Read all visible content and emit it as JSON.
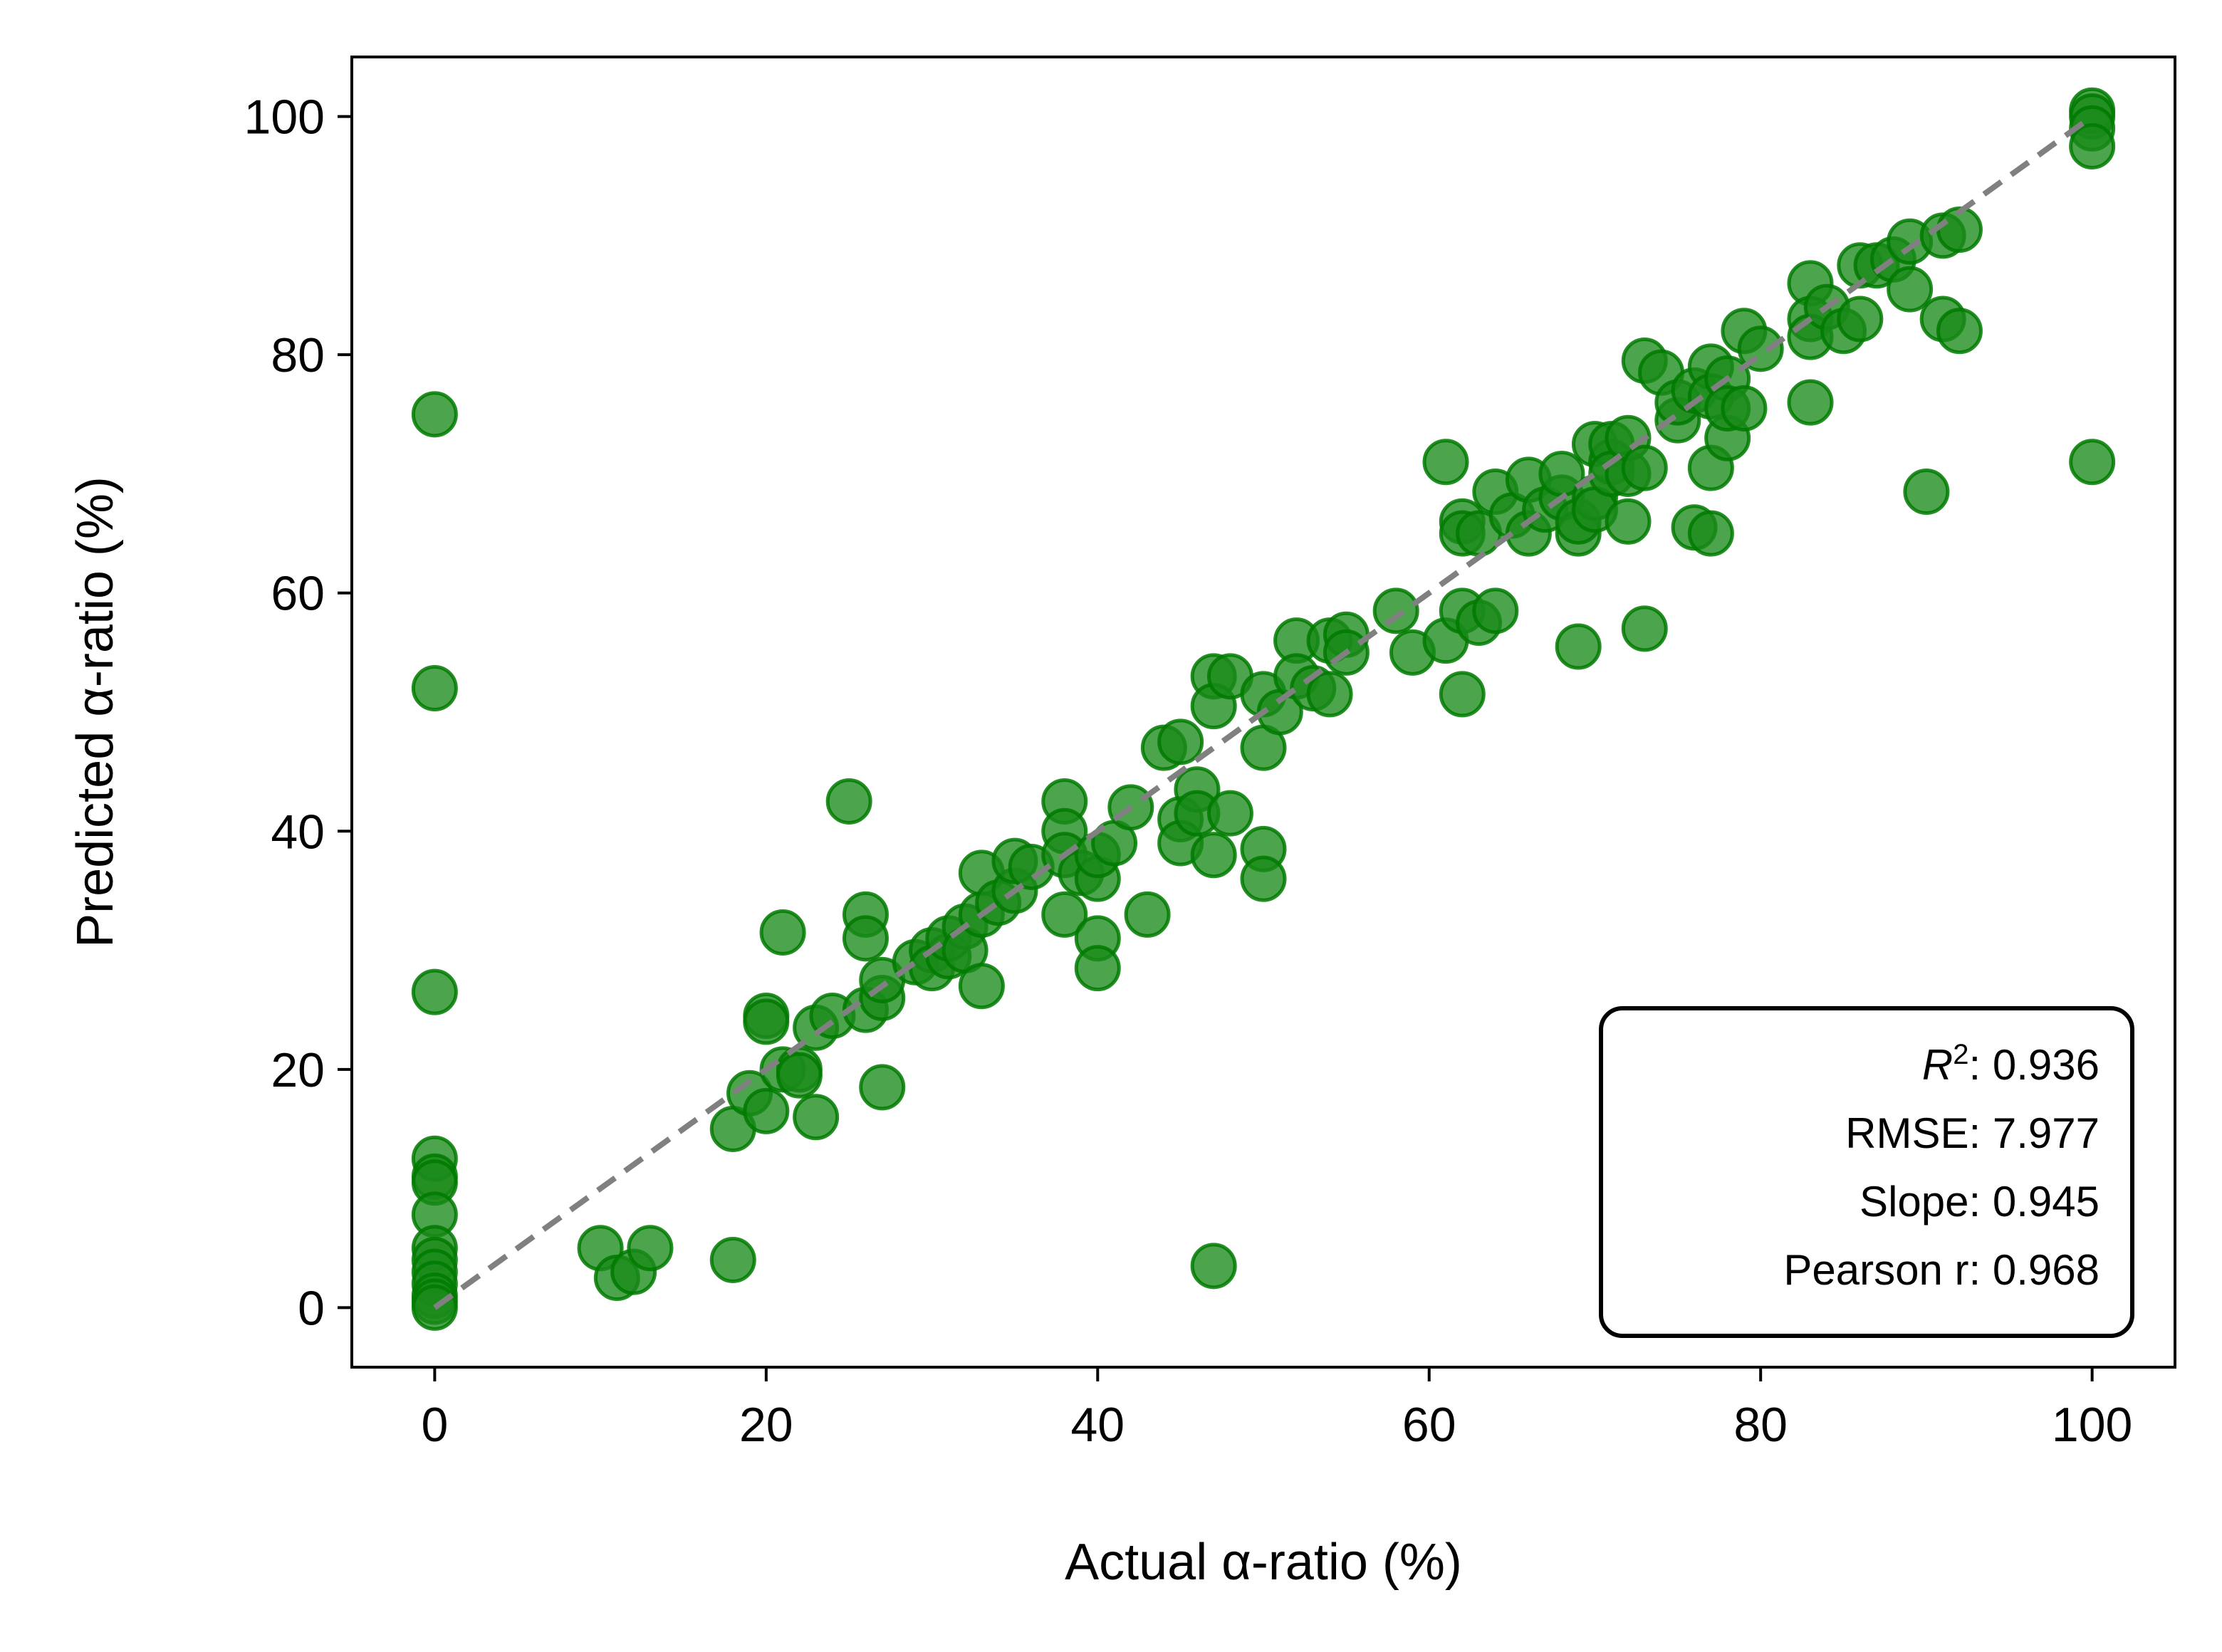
{
  "chart_data": {
    "type": "scatter",
    "xlabel": "Actual α-ratio (%)",
    "ylabel": "Predicted α-ratio (%)",
    "xlim": [
      -5,
      105
    ],
    "ylim": [
      -5,
      105
    ],
    "xticks": [
      0,
      20,
      40,
      60,
      80,
      100
    ],
    "yticks": [
      0,
      20,
      40,
      60,
      80,
      100
    ],
    "grid": false,
    "colors": {
      "points": "#1a8a1a",
      "point_edge": "#007a00",
      "reference_line": "#808080"
    },
    "reference_line": {
      "style": "dashed",
      "from": [
        0,
        0
      ],
      "to": [
        100,
        100
      ]
    },
    "stats": {
      "r2_label": "R",
      "r2_sup": "2",
      "r2_value": ": 0.936",
      "rmse": "RMSE: 7.977",
      "slope": "Slope: 0.945",
      "pearson": "Pearson r: 0.968",
      "placement": "lower-right"
    },
    "points": [
      [
        0,
        75
      ],
      [
        0,
        52
      ],
      [
        0,
        26.5
      ],
      [
        0,
        12.5
      ],
      [
        0,
        11
      ],
      [
        0,
        10.5
      ],
      [
        0,
        7.8
      ],
      [
        0,
        5
      ],
      [
        0,
        4
      ],
      [
        0,
        3
      ],
      [
        0,
        2
      ],
      [
        0,
        1
      ],
      [
        0,
        0.5
      ],
      [
        0,
        0
      ],
      [
        10,
        5
      ],
      [
        11,
        2.5
      ],
      [
        12,
        3
      ],
      [
        13,
        5
      ],
      [
        18,
        4
      ],
      [
        18,
        15
      ],
      [
        19,
        18
      ],
      [
        20,
        24.5
      ],
      [
        20,
        24
      ],
      [
        20,
        16.5
      ],
      [
        21,
        31.5
      ],
      [
        21,
        20
      ],
      [
        22,
        20
      ],
      [
        22,
        19.5
      ],
      [
        23,
        16
      ],
      [
        23,
        23.5
      ],
      [
        24,
        24.5
      ],
      [
        25,
        42.5
      ],
      [
        26,
        33
      ],
      [
        26,
        31
      ],
      [
        26,
        25
      ],
      [
        27,
        26
      ],
      [
        27,
        27.5
      ],
      [
        27,
        18.5
      ],
      [
        29,
        29
      ],
      [
        30,
        30
      ],
      [
        30,
        28.5
      ],
      [
        31,
        29.5
      ],
      [
        31,
        31
      ],
      [
        32,
        32
      ],
      [
        32,
        30
      ],
      [
        33,
        36.5
      ],
      [
        33,
        27
      ],
      [
        33,
        33
      ],
      [
        34,
        34
      ],
      [
        35,
        35
      ],
      [
        35,
        37.5
      ],
      [
        36,
        37
      ],
      [
        38,
        42.5
      ],
      [
        38,
        40
      ],
      [
        38,
        38
      ],
      [
        38,
        33
      ],
      [
        39,
        36.5
      ],
      [
        40,
        36
      ],
      [
        40,
        31
      ],
      [
        40,
        28.5
      ],
      [
        40,
        38
      ],
      [
        41,
        39
      ],
      [
        42,
        42
      ],
      [
        43,
        33
      ],
      [
        44,
        47
      ],
      [
        45,
        47.5
      ],
      [
        45,
        41
      ],
      [
        45,
        39
      ],
      [
        46,
        43.5
      ],
      [
        46,
        41.5
      ],
      [
        47,
        53
      ],
      [
        47,
        50.5
      ],
      [
        47,
        38
      ],
      [
        47,
        3.5
      ],
      [
        48,
        53
      ],
      [
        48,
        41.5
      ],
      [
        50,
        51.5
      ],
      [
        50,
        47
      ],
      [
        50,
        38.5
      ],
      [
        50,
        36
      ],
      [
        51,
        50
      ],
      [
        52,
        56
      ],
      [
        52,
        53
      ],
      [
        53,
        52
      ],
      [
        54,
        51.5
      ],
      [
        54,
        56
      ],
      [
        55,
        56.5
      ],
      [
        55,
        55
      ],
      [
        58,
        58.5
      ],
      [
        59,
        55
      ],
      [
        61,
        71
      ],
      [
        61,
        56
      ],
      [
        62,
        66
      ],
      [
        62,
        65
      ],
      [
        62,
        58.5
      ],
      [
        62,
        51.5
      ],
      [
        63,
        57.5
      ],
      [
        63,
        65
      ],
      [
        64,
        68.5
      ],
      [
        64,
        58.5
      ],
      [
        65,
        66.5
      ],
      [
        66,
        69.5
      ],
      [
        66,
        65
      ],
      [
        67,
        67
      ],
      [
        68,
        68
      ],
      [
        68,
        70
      ],
      [
        69,
        55.5
      ],
      [
        69,
        65
      ],
      [
        69,
        66
      ],
      [
        70,
        72.5
      ],
      [
        70,
        68
      ],
      [
        70,
        67
      ],
      [
        71,
        71
      ],
      [
        71,
        72.5
      ],
      [
        71,
        70
      ],
      [
        72,
        70
      ],
      [
        72,
        73
      ],
      [
        72,
        66
      ],
      [
        73,
        79.5
      ],
      [
        73,
        57
      ],
      [
        73,
        70.5
      ],
      [
        74,
        78.5
      ],
      [
        75,
        74.5
      ],
      [
        75,
        76
      ],
      [
        76,
        65.5
      ],
      [
        76,
        77
      ],
      [
        77,
        79
      ],
      [
        77,
        76.5
      ],
      [
        77,
        65
      ],
      [
        77,
        70.5
      ],
      [
        78,
        78
      ],
      [
        78,
        73
      ],
      [
        78,
        75.5
      ],
      [
        79,
        82
      ],
      [
        79,
        75.5
      ],
      [
        80,
        80.5
      ],
      [
        83,
        86
      ],
      [
        83,
        83
      ],
      [
        83,
        81.5
      ],
      [
        83,
        76
      ],
      [
        84,
        84
      ],
      [
        85,
        82
      ],
      [
        86,
        87.5
      ],
      [
        86,
        83
      ],
      [
        87,
        87.5
      ],
      [
        88,
        88
      ],
      [
        89,
        89.5
      ],
      [
        89,
        85.5
      ],
      [
        90,
        68.5
      ],
      [
        91,
        90
      ],
      [
        91,
        83
      ],
      [
        92,
        82
      ],
      [
        92,
        90.5
      ],
      [
        100,
        100.5
      ],
      [
        100,
        100
      ],
      [
        100,
        99
      ],
      [
        100,
        97.5
      ],
      [
        100,
        71
      ]
    ]
  }
}
